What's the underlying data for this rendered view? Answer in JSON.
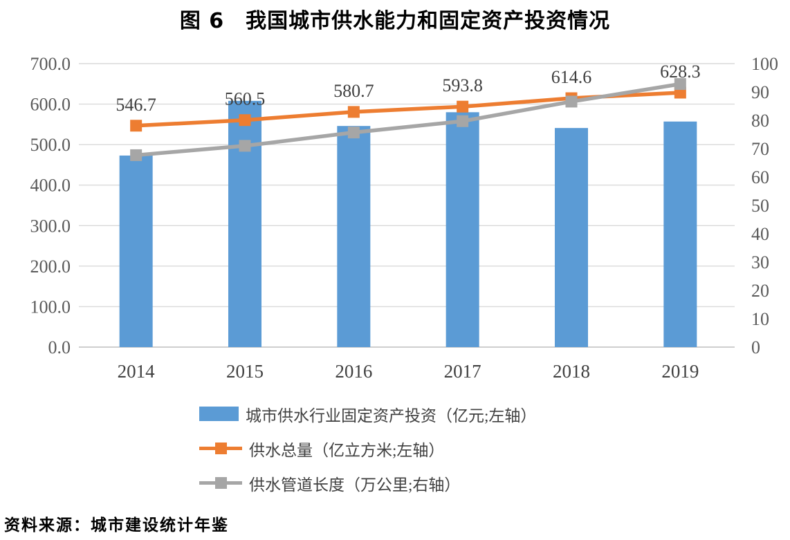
{
  "title": "图 6　我国城市供水能力和固定资产投资情况",
  "source": "资料来源：城市建设统计年鉴",
  "colors": {
    "bar_blue": "#5B9BD5",
    "line_orange": "#ED7D31",
    "line_gray": "#A6A6A6",
    "gridline": "#D9D9D9",
    "axis_line": "#BFBFBF",
    "axis_text": "#595959",
    "data_label_text": "#3F3F3F"
  },
  "chart_data": {
    "type": "bar+line combo",
    "title": "图 6　我国城市供水能力和固定资产投资情况",
    "categories": [
      "2014",
      "2015",
      "2016",
      "2017",
      "2018",
      "2019"
    ],
    "series": [
      {
        "name": "城市供水行业固定资产投资（亿元;左轴）",
        "type": "bar",
        "axis": "left",
        "color": "#5B9BD5",
        "values": [
          473,
          608,
          546,
          580,
          541,
          557
        ]
      },
      {
        "name": "供水总量（亿立方米;左轴）",
        "type": "line",
        "axis": "left",
        "color": "#ED7D31",
        "values": [
          546.7,
          560.5,
          580.7,
          593.8,
          614.6,
          628.3
        ],
        "labels": [
          "546.7",
          "560.5",
          "580.7",
          "593.8",
          "614.6",
          "628.3"
        ]
      },
      {
        "name": "供水管道长度（万公里;右轴）",
        "type": "line",
        "axis": "right",
        "color": "#A6A6A6",
        "values": [
          67.7,
          71.0,
          75.7,
          79.7,
          86.6,
          92.8
        ]
      }
    ],
    "left_axis": {
      "min": 0,
      "max": 700,
      "step": 100,
      "tick_labels": [
        "0.0",
        "100.0",
        "200.0",
        "300.0",
        "400.0",
        "500.0",
        "600.0",
        "700.0"
      ]
    },
    "right_axis": {
      "min": 0,
      "max": 100,
      "step": 10,
      "tick_labels": [
        "0",
        "10",
        "20",
        "30",
        "40",
        "50",
        "60",
        "70",
        "80",
        "90",
        "100"
      ]
    },
    "grid": true,
    "legend_position": "bottom-left"
  }
}
